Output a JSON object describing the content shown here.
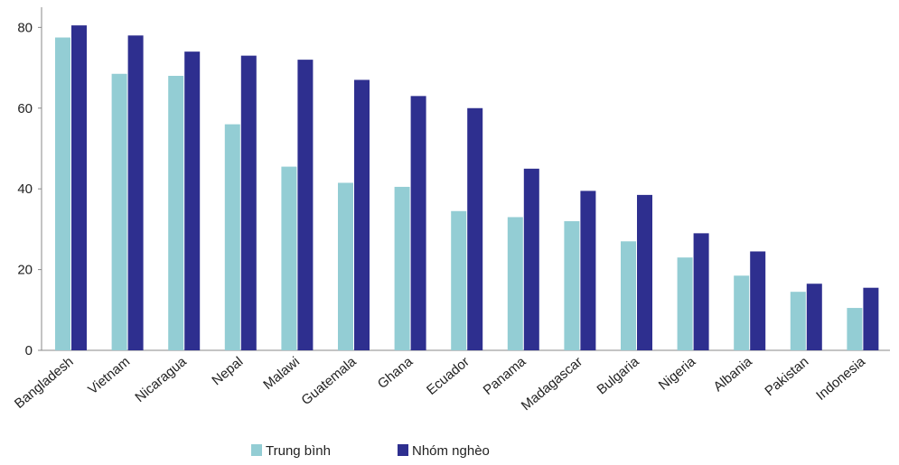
{
  "chart_data": {
    "type": "bar",
    "categories": [
      "Bangladesh",
      "Vietnam",
      "Nicaragua",
      "Nepal",
      "Malawi",
      "Guatemala",
      "Ghana",
      "Ecuador",
      "Panama",
      "Madagascar",
      "Bulgaria",
      "Nigeria",
      "Albania",
      "Pakistan",
      "Indonesia"
    ],
    "series": [
      {
        "name": "Trung bình",
        "color": "#93cdd4",
        "values": [
          77.5,
          68.5,
          68,
          56,
          45.5,
          41.5,
          40.5,
          34.5,
          33,
          32,
          27,
          23,
          18.5,
          14.5,
          10.5
        ]
      },
      {
        "name": "Nhóm nghèo",
        "color": "#2e2f8f",
        "values": [
          80.5,
          78,
          74,
          73,
          72,
          67,
          63,
          60,
          45,
          39.5,
          38.5,
          29,
          24.5,
          16.5,
          15.5
        ]
      }
    ],
    "ylim": [
      0,
      85
    ],
    "yticks": [
      0,
      20,
      40,
      60,
      80
    ],
    "title": "",
    "xlabel": "",
    "ylabel": "",
    "grid": false,
    "legend_position": "bottom"
  }
}
